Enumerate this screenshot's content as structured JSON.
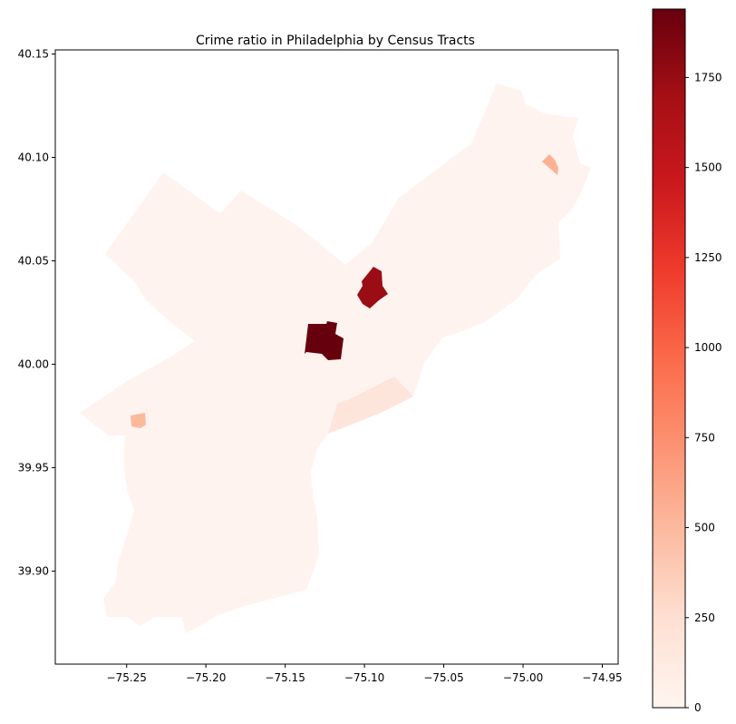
{
  "chart_data": {
    "type": "choropleth",
    "title": "Crime ratio in Philadelphia by Census Tracts",
    "xlabel": "",
    "ylabel": "",
    "xlim": [
      -75.295,
      -74.94
    ],
    "ylim": [
      39.855,
      40.152
    ],
    "xticks": [
      -75.25,
      -75.2,
      -75.15,
      -75.1,
      -75.05,
      -75.0,
      -74.95
    ],
    "xtick_labels": [
      "−75.25",
      "−75.20",
      "−75.15",
      "−75.10",
      "−75.05",
      "−75.00",
      "−74.95"
    ],
    "yticks": [
      39.9,
      39.95,
      40.0,
      40.05,
      40.1,
      40.15
    ],
    "ytick_labels": [
      "39.90",
      "39.95",
      "40.00",
      "40.05",
      "40.10",
      "40.15"
    ],
    "grid": false,
    "colormap": "Reds",
    "colorbar": {
      "min": 0,
      "max": 1940,
      "ticks": [
        0,
        250,
        500,
        750,
        1000,
        1250,
        1500,
        1750
      ],
      "tick_labels": [
        "0",
        "250",
        "500",
        "750",
        "1000",
        "1250",
        "1500",
        "1750"
      ],
      "colors": [
        "#fff5f0",
        "#fee0d2",
        "#fcbba1",
        "#fc9272",
        "#fb6a4a",
        "#ef3b2c",
        "#cb181d",
        "#a50f15",
        "#67000d"
      ]
    },
    "base_color": "#fff3ef",
    "regions": [
      {
        "value": 1940,
        "color": "#67000d"
      },
      {
        "value": 1640,
        "color": "#9b0d14"
      },
      {
        "value": 430,
        "color": "#fcb194"
      },
      {
        "value": 410,
        "color": "#fcb99b"
      },
      {
        "value": 90,
        "color": "#fde5dc"
      }
    ]
  }
}
